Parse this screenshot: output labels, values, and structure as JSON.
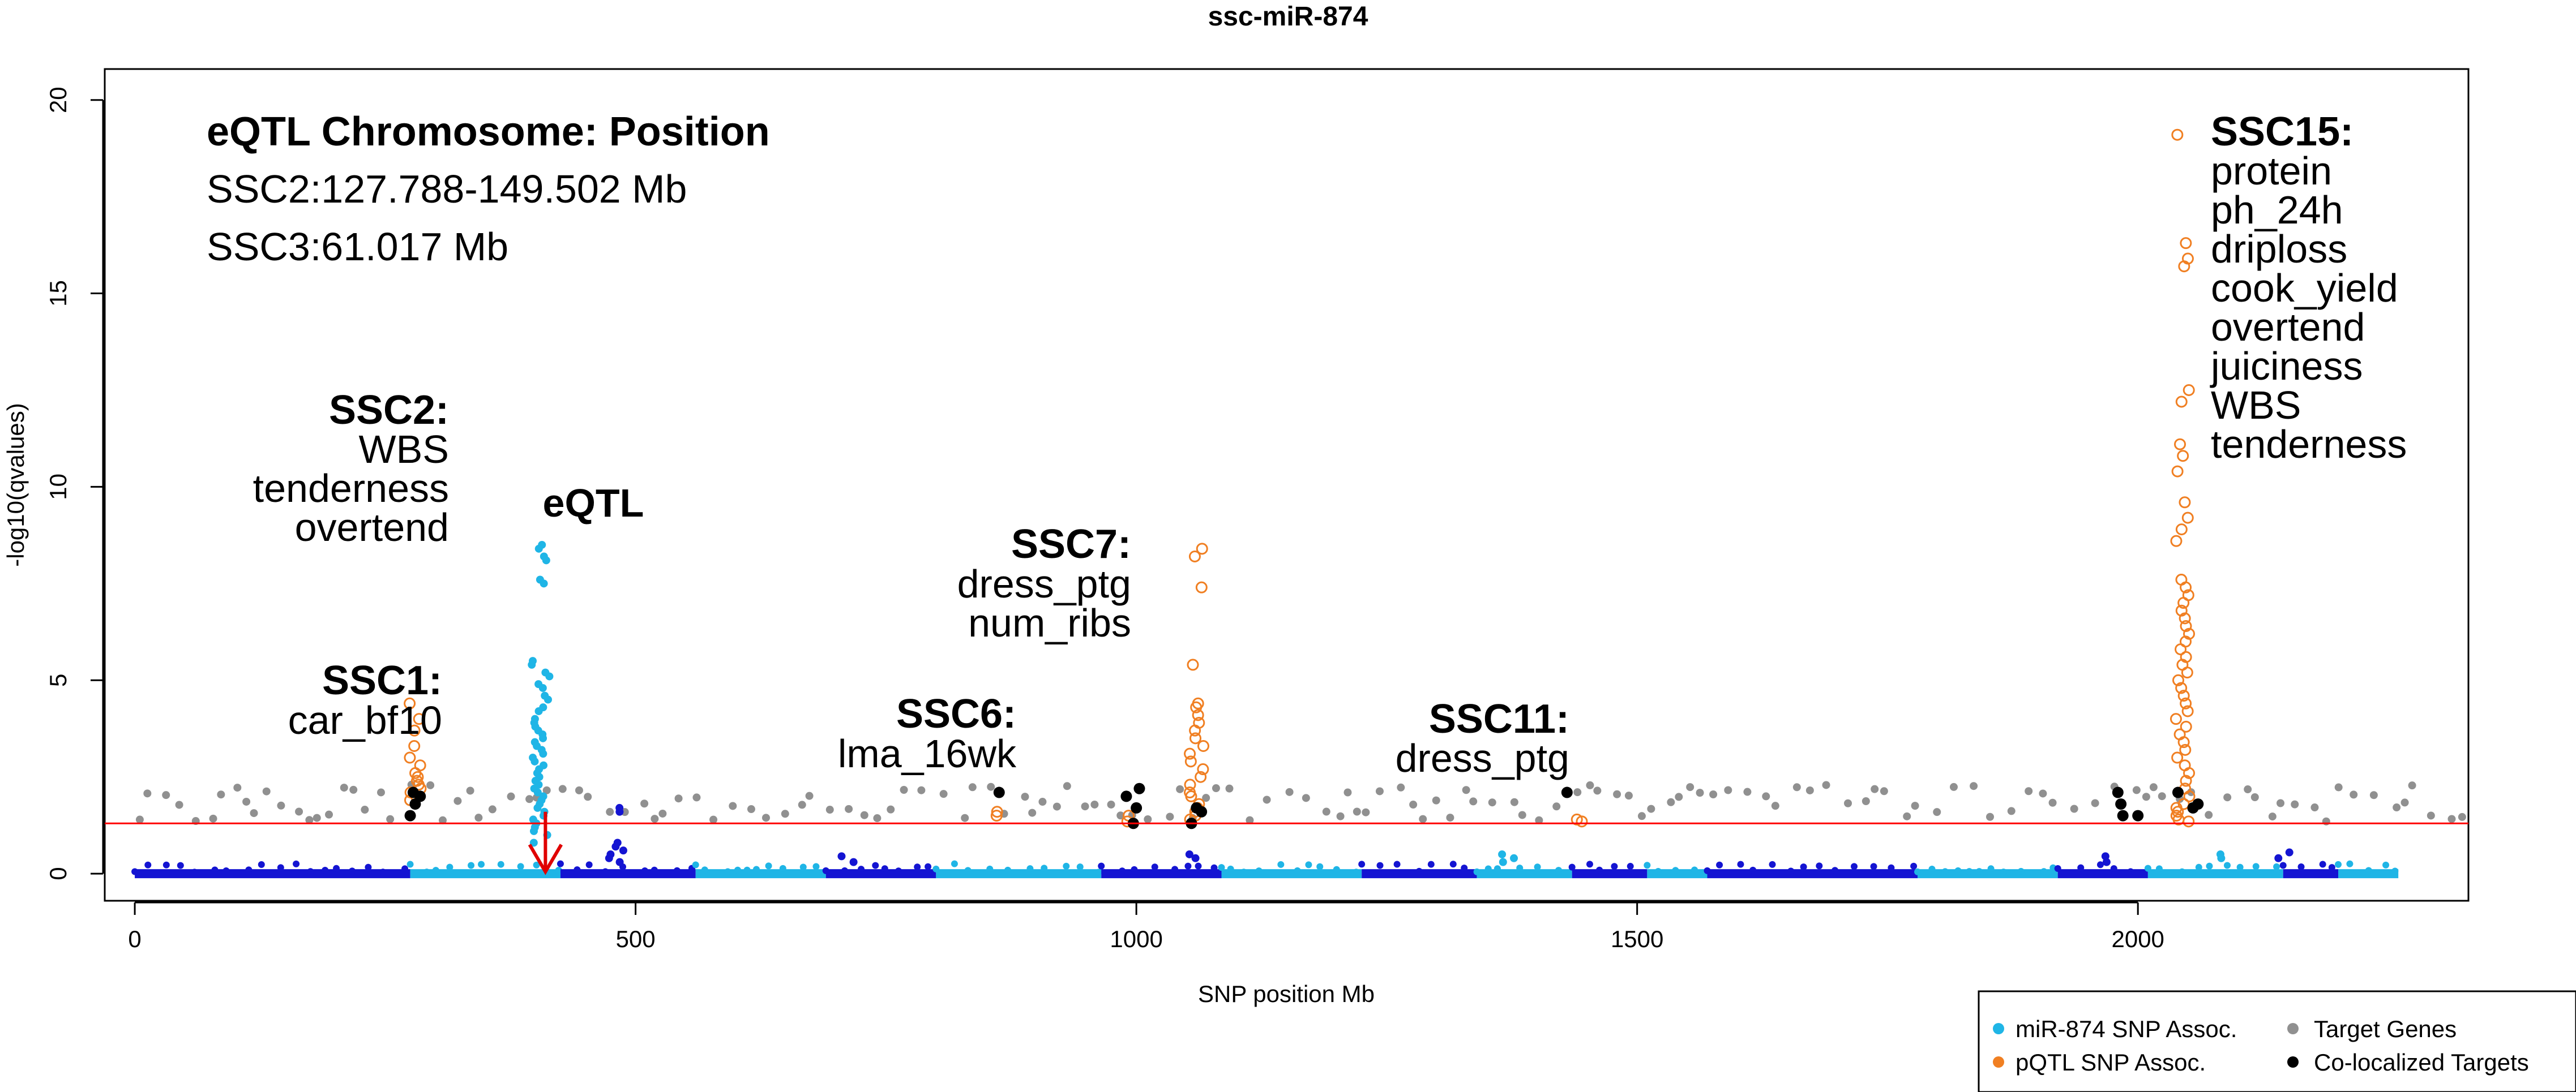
{
  "chart_data": {
    "type": "scatter",
    "title": "ssc-miR-874",
    "xlabel": "SNP position Mb",
    "ylabel": "-log10(qvalues)",
    "xlim": [
      -30,
      2330
    ],
    "ylim": [
      -0.7,
      20.8
    ],
    "xticks": [
      0,
      500,
      1000,
      1500,
      2000
    ],
    "yticks": [
      0,
      5,
      10,
      15,
      20
    ],
    "threshold": 1.3,
    "colors": {
      "mirna_light": "#1fb5e6",
      "mirna_dark": "#1414d2",
      "pqtl": "#f07f22",
      "target": "#909090",
      "coloc": "#000000",
      "threshold_line": "#ff0000",
      "arrow": "#e00000"
    },
    "chromosome_spans": [
      [
        0,
        275
      ],
      [
        275,
        425
      ],
      [
        425,
        560
      ],
      [
        560,
        690
      ],
      [
        690,
        800
      ],
      [
        800,
        965
      ],
      [
        965,
        1085
      ],
      [
        1085,
        1225
      ],
      [
        1225,
        1340
      ],
      [
        1340,
        1435
      ],
      [
        1435,
        1510
      ],
      [
        1510,
        1570
      ],
      [
        1570,
        1780
      ],
      [
        1780,
        1920
      ],
      [
        1920,
        2010
      ],
      [
        2010,
        2145
      ],
      [
        2145,
        2200
      ],
      [
        2200,
        2260
      ]
    ],
    "mirna_peaks": [
      {
        "x": 405,
        "values": [
          8.5,
          8.2,
          7.6,
          5.5,
          5.2,
          4.9,
          4.6,
          4.3,
          4.0,
          3.8,
          3.6,
          3.4,
          3.2,
          3.0,
          2.8,
          2.6,
          2.4,
          2.2,
          2.0,
          1.8,
          1.6,
          1.4,
          1.2,
          1.0,
          0.8
        ]
      },
      {
        "x": 480,
        "values": [
          1.7,
          0.8,
          0.7,
          0.6,
          0.5,
          0.4,
          0.3
        ]
      },
      {
        "x": 1370,
        "values": [
          0.5,
          0.4,
          0.3
        ]
      },
      {
        "x": 1060,
        "values": [
          0.5,
          0.4
        ]
      },
      {
        "x": 2145,
        "values": [
          0.55,
          0.4
        ]
      },
      {
        "x": 2090,
        "values": [
          0.5,
          0.4
        ]
      },
      {
        "x": 1975,
        "values": [
          0.45,
          0.3
        ]
      },
      {
        "x": 710,
        "values": [
          0.45,
          0.3
        ]
      }
    ],
    "pqtl_points": [
      {
        "x": 280,
        "values": [
          4.4,
          4.0,
          3.7,
          3.3,
          3.0,
          2.8,
          2.6,
          2.5,
          2.4,
          2.3,
          2.2,
          2.1,
          2.0,
          1.9
        ]
      },
      {
        "x": 1060,
        "values": [
          8.4,
          8.2,
          7.4,
          5.4,
          4.4,
          4.3,
          4.1,
          3.9,
          3.7,
          3.5,
          3.3,
          3.1,
          2.9,
          2.7,
          2.5,
          2.3,
          2.1,
          2.0,
          1.8,
          1.7,
          1.6,
          1.5,
          1.4
        ]
      },
      {
        "x": 2045,
        "values": [
          19.1,
          16.3,
          15.9,
          15.7,
          12.5,
          12.2,
          11.1,
          10.8,
          10.4,
          9.6,
          9.2,
          8.9,
          8.6,
          7.6,
          7.4,
          7.2,
          7.0,
          6.8,
          6.6,
          6.4,
          6.2,
          6.0,
          5.8,
          5.6,
          5.4,
          5.2,
          5.0,
          4.8,
          4.6,
          4.4,
          4.2,
          4.0,
          3.8,
          3.6,
          3.4,
          3.2,
          3.0,
          2.8,
          2.6,
          2.4,
          2.2,
          2.0,
          1.8,
          1.7,
          1.6,
          1.5,
          1.4,
          1.35
        ]
      },
      {
        "x": 860,
        "values": [
          1.6,
          1.5
        ]
      },
      {
        "x": 990,
        "values": [
          1.5,
          1.35
        ]
      },
      {
        "x": 1440,
        "values": [
          1.4,
          1.35
        ]
      }
    ],
    "coloc_points": [
      {
        "x": 275,
        "y": 1.5
      },
      {
        "x": 280,
        "y": 1.8
      },
      {
        "x": 285,
        "y": 2.0
      },
      {
        "x": 278,
        "y": 2.1
      },
      {
        "x": 863,
        "y": 2.1
      },
      {
        "x": 990,
        "y": 2.0
      },
      {
        "x": 997,
        "y": 1.3
      },
      {
        "x": 1000,
        "y": 1.7
      },
      {
        "x": 1003,
        "y": 2.2
      },
      {
        "x": 1055,
        "y": 1.3
      },
      {
        "x": 1060,
        "y": 1.7
      },
      {
        "x": 1065,
        "y": 1.6
      },
      {
        "x": 1430,
        "y": 2.1
      },
      {
        "x": 1980,
        "y": 2.1
      },
      {
        "x": 1983,
        "y": 1.8
      },
      {
        "x": 1985,
        "y": 1.5
      },
      {
        "x": 2000,
        "y": 1.5
      },
      {
        "x": 2040,
        "y": 2.1
      },
      {
        "x": 2055,
        "y": 1.7
      },
      {
        "x": 2060,
        "y": 1.8
      }
    ],
    "annotations": {
      "eqtl_heading": "eQTL Chromosome: Position",
      "eqtl_line1": "SSC2:127.788-149.502 Mb",
      "eqtl_line2": "SSC3:61.017 Mb",
      "eqtl_label": "eQTL",
      "ssc1": {
        "title": "SSC1:",
        "traits": [
          "car_bf10"
        ]
      },
      "ssc2": {
        "title": "SSC2:",
        "traits": [
          "WBS",
          "tenderness",
          "overtend"
        ]
      },
      "ssc6": {
        "title": "SSC6:",
        "traits": [
          "lma_16wk"
        ]
      },
      "ssc7": {
        "title": "SSC7:",
        "traits": [
          "dress_ptg",
          "num_ribs"
        ]
      },
      "ssc11": {
        "title": "SSC11:",
        "traits": [
          "dress_ptg"
        ]
      },
      "ssc15": {
        "title": "SSC15:",
        "traits": [
          "protein",
          "ph_24h",
          "driploss",
          "cook_yield",
          "overtend",
          "juiciness",
          "WBS",
          "tenderness"
        ]
      }
    },
    "legend": {
      "position": "bottom-right",
      "items": [
        "miR-874 SNP Assoc.",
        "pQTL SNP Assoc.",
        "Target Genes",
        "Co-localized Targets"
      ]
    }
  }
}
